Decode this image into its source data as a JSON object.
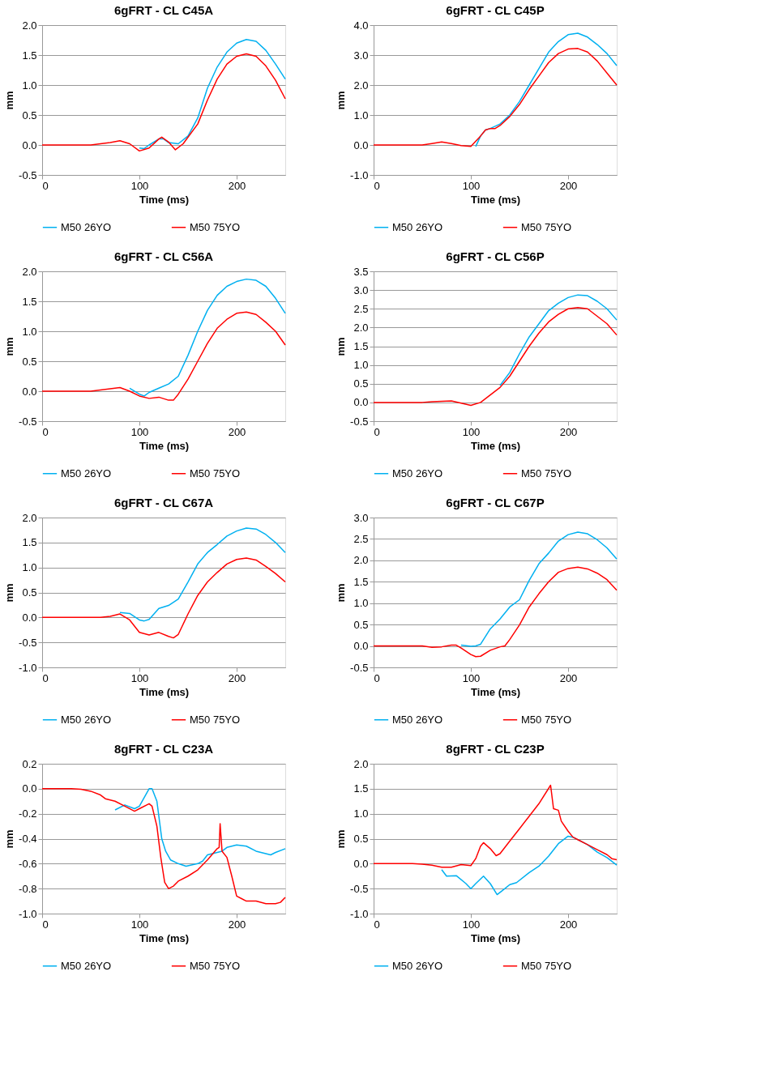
{
  "chart_data": [
    {
      "type": "line",
      "title": "6gFRT - CL C45A",
      "xlabel": "Time (ms)",
      "ylabel": "mm",
      "xlim": [
        0,
        250
      ],
      "xticks": [
        0,
        100,
        200
      ],
      "ylim": [
        -0.5,
        2.0
      ],
      "yticks": [
        {
          "value": -0.5,
          "label": "-0.5"
        },
        {
          "value": 0,
          "label": "0.0"
        },
        {
          "value": 0.5,
          "label": "0.5"
        },
        {
          "value": 1,
          "label": "1.0"
        },
        {
          "value": 1.5,
          "label": "1.5"
        },
        {
          "value": 2,
          "label": "2.0"
        }
      ],
      "grid": "y",
      "legend": "bottom",
      "series": [
        {
          "name": "M50 26YO",
          "color": "#00b0f0",
          "x": [
            100,
            105,
            110,
            120,
            125,
            130,
            140,
            150,
            160,
            170,
            180,
            190,
            200,
            210,
            220,
            230,
            240,
            250
          ],
          "values": [
            -0.05,
            -0.06,
            0.0,
            0.1,
            0.1,
            0.04,
            0.02,
            0.15,
            0.45,
            0.95,
            1.3,
            1.55,
            1.7,
            1.76,
            1.73,
            1.58,
            1.35,
            1.1
          ]
        },
        {
          "name": "M50 75YO",
          "color": "#ff0000",
          "x": [
            0,
            10,
            20,
            30,
            40,
            50,
            60,
            70,
            80,
            90,
            100,
            110,
            120,
            123,
            130,
            137,
            145,
            160,
            170,
            180,
            190,
            200,
            210,
            220,
            230,
            240,
            250
          ],
          "values": [
            0,
            0,
            0,
            0,
            0,
            0,
            0.02,
            0.04,
            0.07,
            0.02,
            -0.1,
            -0.05,
            0.1,
            0.13,
            0.05,
            -0.08,
            0.02,
            0.35,
            0.75,
            1.1,
            1.35,
            1.48,
            1.52,
            1.48,
            1.32,
            1.08,
            0.77
          ]
        }
      ]
    },
    {
      "type": "line",
      "title": "6gFRT - CL C45P",
      "xlabel": "Time (ms)",
      "ylabel": "mm",
      "xlim": [
        0,
        250
      ],
      "xticks": [
        0,
        100,
        200
      ],
      "ylim": [
        -1.0,
        4.0
      ],
      "yticks": [
        {
          "value": -1,
          "label": "-1.0"
        },
        {
          "value": 0,
          "label": "0.0"
        },
        {
          "value": 1,
          "label": "1.0"
        },
        {
          "value": 2,
          "label": "2.0"
        },
        {
          "value": 3,
          "label": "3.0"
        },
        {
          "value": 4,
          "label": "4.0"
        }
      ],
      "grid": "y",
      "legend": "bottom",
      "series": [
        {
          "name": "M50 26YO",
          "color": "#00b0f0",
          "x": [
            105,
            110,
            115,
            120,
            130,
            140,
            150,
            160,
            170,
            180,
            190,
            200,
            210,
            220,
            230,
            240,
            250
          ],
          "values": [
            -0.05,
            0.3,
            0.5,
            0.55,
            0.7,
            1.0,
            1.45,
            2.0,
            2.55,
            3.1,
            3.45,
            3.68,
            3.73,
            3.6,
            3.35,
            3.05,
            2.65
          ]
        },
        {
          "name": "M50 75YO",
          "color": "#ff0000",
          "x": [
            0,
            10,
            20,
            30,
            40,
            50,
            60,
            70,
            80,
            90,
            100,
            110,
            115,
            120,
            125,
            130,
            140,
            150,
            160,
            170,
            180,
            190,
            200,
            210,
            220,
            230,
            240,
            250
          ],
          "values": [
            0,
            0,
            0,
            0,
            0,
            0,
            0.05,
            0.1,
            0.05,
            -0.02,
            -0.05,
            0.3,
            0.5,
            0.55,
            0.55,
            0.65,
            0.95,
            1.35,
            1.85,
            2.3,
            2.75,
            3.05,
            3.2,
            3.22,
            3.1,
            2.8,
            2.4,
            2.0
          ]
        }
      ]
    },
    {
      "type": "line",
      "title": "6gFRT - CL C56A",
      "xlabel": "Time (ms)",
      "ylabel": "mm",
      "xlim": [
        0,
        250
      ],
      "xticks": [
        0,
        100,
        200
      ],
      "ylim": [
        -0.5,
        2.0
      ],
      "yticks": [
        {
          "value": -0.5,
          "label": "-0.5"
        },
        {
          "value": 0,
          "label": "0.0"
        },
        {
          "value": 0.5,
          "label": "0.5"
        },
        {
          "value": 1,
          "label": "1.0"
        },
        {
          "value": 1.5,
          "label": "1.5"
        },
        {
          "value": 2,
          "label": "2.0"
        }
      ],
      "grid": "y",
      "legend": "bottom",
      "series": [
        {
          "name": "M50 26YO",
          "color": "#00b0f0",
          "x": [
            90,
            100,
            105,
            110,
            120,
            130,
            140,
            150,
            160,
            170,
            180,
            190,
            200,
            210,
            220,
            230,
            240,
            250
          ],
          "values": [
            0.05,
            -0.05,
            -0.08,
            -0.02,
            0.05,
            0.12,
            0.25,
            0.6,
            1.0,
            1.35,
            1.6,
            1.75,
            1.83,
            1.87,
            1.85,
            1.75,
            1.55,
            1.3
          ]
        },
        {
          "name": "M50 75YO",
          "color": "#ff0000",
          "x": [
            0,
            10,
            20,
            30,
            40,
            50,
            60,
            70,
            80,
            90,
            100,
            110,
            120,
            130,
            135,
            140,
            150,
            160,
            170,
            180,
            190,
            200,
            210,
            220,
            230,
            240,
            250
          ],
          "values": [
            0,
            0,
            0,
            0,
            0,
            0,
            0.02,
            0.04,
            0.06,
            0,
            -0.08,
            -0.12,
            -0.1,
            -0.15,
            -0.15,
            -0.05,
            0.2,
            0.5,
            0.8,
            1.05,
            1.2,
            1.3,
            1.32,
            1.28,
            1.15,
            1.0,
            0.77
          ]
        }
      ]
    },
    {
      "type": "line",
      "title": "6gFRT - CL C56P",
      "xlabel": "Time (ms)",
      "ylabel": "mm",
      "xlim": [
        0,
        250
      ],
      "xticks": [
        0,
        100,
        200
      ],
      "ylim": [
        -0.5,
        3.5
      ],
      "yticks": [
        {
          "value": -0.5,
          "label": "-0.5"
        },
        {
          "value": 0,
          "label": "0.0"
        },
        {
          "value": 0.5,
          "label": "0.5"
        },
        {
          "value": 1,
          "label": "1.0"
        },
        {
          "value": 1.5,
          "label": "1.5"
        },
        {
          "value": 2,
          "label": "2.0"
        },
        {
          "value": 2.5,
          "label": "2.5"
        },
        {
          "value": 3,
          "label": "3.0"
        },
        {
          "value": 3.5,
          "label": "3.5"
        }
      ],
      "grid": "y",
      "legend": "bottom",
      "series": [
        {
          "name": "M50 26YO",
          "color": "#00b0f0",
          "x": [
            130,
            140,
            150,
            160,
            170,
            180,
            190,
            200,
            210,
            220,
            230,
            240,
            250
          ],
          "values": [
            0.45,
            0.8,
            1.3,
            1.75,
            2.1,
            2.45,
            2.65,
            2.8,
            2.87,
            2.85,
            2.7,
            2.5,
            2.2
          ]
        },
        {
          "name": "M50 75YO",
          "color": "#ff0000",
          "x": [
            0,
            10,
            20,
            30,
            40,
            50,
            60,
            70,
            80,
            90,
            100,
            110,
            120,
            130,
            140,
            150,
            160,
            170,
            180,
            190,
            200,
            210,
            220,
            230,
            240,
            250
          ],
          "values": [
            0,
            0,
            0,
            0,
            0,
            0,
            0.02,
            0.03,
            0.04,
            -0.02,
            -0.08,
            0,
            0.2,
            0.4,
            0.7,
            1.1,
            1.5,
            1.85,
            2.15,
            2.35,
            2.5,
            2.53,
            2.5,
            2.3,
            2.1,
            1.8
          ]
        }
      ]
    },
    {
      "type": "line",
      "title": "6gFRT - CL C67A",
      "xlabel": "Time (ms)",
      "ylabel": "mm",
      "xlim": [
        0,
        250
      ],
      "xticks": [
        0,
        100,
        200
      ],
      "ylim": [
        -1.0,
        2.0
      ],
      "yticks": [
        {
          "value": -1,
          "label": "-1.0"
        },
        {
          "value": -0.5,
          "label": "-0.5"
        },
        {
          "value": 0,
          "label": "0.0"
        },
        {
          "value": 0.5,
          "label": "0.5"
        },
        {
          "value": 1,
          "label": "1.0"
        },
        {
          "value": 1.5,
          "label": "1.5"
        },
        {
          "value": 2,
          "label": "2.0"
        }
      ],
      "grid": "y",
      "legend": "bottom",
      "series": [
        {
          "name": "M50 26YO",
          "color": "#00b0f0",
          "x": [
            80,
            90,
            100,
            105,
            110,
            120,
            130,
            140,
            150,
            160,
            170,
            180,
            190,
            200,
            210,
            220,
            230,
            240,
            250
          ],
          "values": [
            0.1,
            0.08,
            -0.05,
            -0.07,
            -0.04,
            0.18,
            0.24,
            0.37,
            0.71,
            1.07,
            1.3,
            1.46,
            1.63,
            1.73,
            1.79,
            1.77,
            1.66,
            1.5,
            1.3
          ]
        },
        {
          "name": "M50 75YO",
          "color": "#ff0000",
          "x": [
            0,
            10,
            20,
            30,
            40,
            50,
            60,
            70,
            80,
            90,
            100,
            110,
            120,
            130,
            135,
            140,
            150,
            160,
            170,
            180,
            190,
            200,
            210,
            220,
            230,
            240,
            250
          ],
          "values": [
            0,
            0,
            0,
            0,
            0,
            0,
            0.0,
            0.02,
            0.07,
            -0.05,
            -0.3,
            -0.35,
            -0.3,
            -0.38,
            -0.41,
            -0.34,
            0.07,
            0.44,
            0.71,
            0.9,
            1.07,
            1.16,
            1.19,
            1.15,
            1.02,
            0.88,
            0.71
          ]
        }
      ]
    },
    {
      "type": "line",
      "title": "6gFRT - CL C67P",
      "xlabel": "Time (ms)",
      "ylabel": "mm",
      "xlim": [
        0,
        250
      ],
      "xticks": [
        0,
        100,
        200
      ],
      "ylim": [
        -0.5,
        3.0
      ],
      "yticks": [
        {
          "value": -0.5,
          "label": "-0.5"
        },
        {
          "value": 0,
          "label": "0.0"
        },
        {
          "value": 0.5,
          "label": "0.5"
        },
        {
          "value": 1,
          "label": "1.0"
        },
        {
          "value": 1.5,
          "label": "1.5"
        },
        {
          "value": 2,
          "label": "2.0"
        },
        {
          "value": 2.5,
          "label": "2.5"
        },
        {
          "value": 3,
          "label": "3.0"
        }
      ],
      "grid": "y",
      "legend": "bottom",
      "series": [
        {
          "name": "M50 26YO",
          "color": "#00b0f0",
          "x": [
            90,
            100,
            105,
            110,
            120,
            130,
            140,
            150,
            160,
            170,
            180,
            190,
            200,
            210,
            220,
            230,
            240,
            250
          ],
          "values": [
            0.02,
            -0.01,
            0,
            0.04,
            0.4,
            0.63,
            0.91,
            1.08,
            1.53,
            1.92,
            2.17,
            2.45,
            2.6,
            2.66,
            2.62,
            2.48,
            2.29,
            2.03
          ]
        },
        {
          "name": "M50 75YO",
          "color": "#ff0000",
          "x": [
            0,
            10,
            20,
            30,
            40,
            50,
            60,
            70,
            80,
            85,
            90,
            100,
            105,
            110,
            120,
            130,
            135,
            140,
            150,
            160,
            170,
            180,
            190,
            200,
            210,
            220,
            230,
            240,
            250
          ],
          "values": [
            0,
            0,
            0,
            0,
            0,
            0,
            -0.03,
            -0.02,
            0.02,
            0.02,
            -0.05,
            -0.2,
            -0.25,
            -0.24,
            -0.1,
            -0.02,
            0,
            0.15,
            0.49,
            0.91,
            1.22,
            1.5,
            1.72,
            1.81,
            1.84,
            1.8,
            1.7,
            1.55,
            1.3
          ]
        }
      ]
    },
    {
      "type": "line",
      "title": "8gFRT - CL C23A",
      "xlabel": "Time (ms)",
      "ylabel": "mm",
      "xlim": [
        0,
        250
      ],
      "xticks": [
        0,
        100,
        200
      ],
      "ylim": [
        -1.0,
        0.2
      ],
      "yticks": [
        {
          "value": -1,
          "label": "-1.0"
        },
        {
          "value": -0.8,
          "label": "-0.8"
        },
        {
          "value": -0.6,
          "label": "-0.6"
        },
        {
          "value": -0.4,
          "label": "-0.4"
        },
        {
          "value": -0.2,
          "label": "-0.2"
        },
        {
          "value": 0,
          "label": "0.0"
        },
        {
          "value": 0.2,
          "label": "0.2"
        }
      ],
      "grid": "y",
      "legend": "bottom",
      "series": [
        {
          "name": "M50 26YO",
          "color": "#00b0f0",
          "x": [
            75,
            85,
            95,
            100,
            105,
            110,
            113,
            118,
            123,
            127,
            132,
            140,
            148,
            160,
            165,
            170,
            180,
            185,
            190,
            200,
            210,
            220,
            235,
            240,
            250
          ],
          "values": [
            -0.17,
            -0.13,
            -0.16,
            -0.14,
            -0.07,
            0.0,
            0.0,
            -0.1,
            -0.4,
            -0.5,
            -0.57,
            -0.6,
            -0.62,
            -0.6,
            -0.58,
            -0.53,
            -0.51,
            -0.5,
            -0.47,
            -0.45,
            -0.46,
            -0.5,
            -0.53,
            -0.51,
            -0.48
          ]
        },
        {
          "name": "M50 75YO",
          "color": "#ff0000",
          "x": [
            0,
            10,
            20,
            30,
            40,
            50,
            60,
            65,
            75,
            85,
            95,
            100,
            110,
            113,
            118,
            122,
            126,
            130,
            135,
            140,
            150,
            160,
            170,
            180,
            182,
            183,
            185,
            190,
            195,
            200,
            205,
            210,
            220,
            230,
            240,
            245,
            250
          ],
          "values": [
            0,
            0,
            0,
            0,
            -0.005,
            -0.02,
            -0.05,
            -0.08,
            -0.1,
            -0.14,
            -0.18,
            -0.16,
            -0.12,
            -0.14,
            -0.3,
            -0.55,
            -0.75,
            -0.8,
            -0.78,
            -0.74,
            -0.7,
            -0.65,
            -0.57,
            -0.48,
            -0.47,
            -0.28,
            -0.5,
            -0.55,
            -0.7,
            -0.86,
            -0.88,
            -0.9,
            -0.9,
            -0.92,
            -0.92,
            -0.91,
            -0.87
          ]
        }
      ]
    },
    {
      "type": "line",
      "title": "8gFRT - CL C23P",
      "xlabel": "Time (ms)",
      "ylabel": "mm",
      "xlim": [
        0,
        250
      ],
      "xticks": [
        0,
        100,
        200
      ],
      "ylim": [
        -1.0,
        2.0
      ],
      "yticks": [
        {
          "value": -1,
          "label": "-1.0"
        },
        {
          "value": -0.5,
          "label": "-0.5"
        },
        {
          "value": 0,
          "label": "0.0"
        },
        {
          "value": 0.5,
          "label": "0.5"
        },
        {
          "value": 1,
          "label": "1.0"
        },
        {
          "value": 1.5,
          "label": "1.5"
        },
        {
          "value": 2,
          "label": "2.0"
        }
      ],
      "grid": "y",
      "legend": "bottom",
      "series": [
        {
          "name": "M50 26YO",
          "color": "#00b0f0",
          "x": [
            70,
            75,
            85,
            95,
            100,
            105,
            113,
            120,
            127,
            135,
            140,
            147,
            160,
            170,
            180,
            190,
            200,
            205,
            220,
            230,
            240,
            250
          ],
          "values": [
            -0.12,
            -0.25,
            -0.24,
            -0.4,
            -0.5,
            -0.4,
            -0.25,
            -0.4,
            -0.62,
            -0.5,
            -0.42,
            -0.38,
            -0.18,
            -0.05,
            0.15,
            0.4,
            0.55,
            0.53,
            0.38,
            0.23,
            0.12,
            -0.03
          ]
        },
        {
          "name": "M50 75YO",
          "color": "#ff0000",
          "x": [
            0,
            10,
            20,
            30,
            40,
            50,
            60,
            70,
            80,
            90,
            100,
            105,
            110,
            113,
            120,
            126,
            130,
            140,
            150,
            160,
            170,
            182,
            185,
            190,
            193,
            200,
            205,
            210,
            220,
            230,
            240,
            245,
            250
          ],
          "values": [
            0,
            0,
            0,
            0,
            0,
            -0.01,
            -0.03,
            -0.07,
            -0.07,
            -0.02,
            -0.04,
            0.1,
            0.35,
            0.42,
            0.3,
            0.16,
            0.2,
            0.45,
            0.7,
            0.95,
            1.2,
            1.57,
            1.1,
            1.07,
            0.85,
            0.65,
            0.53,
            0.48,
            0.38,
            0.28,
            0.18,
            0.1,
            0.08
          ]
        }
      ]
    }
  ]
}
